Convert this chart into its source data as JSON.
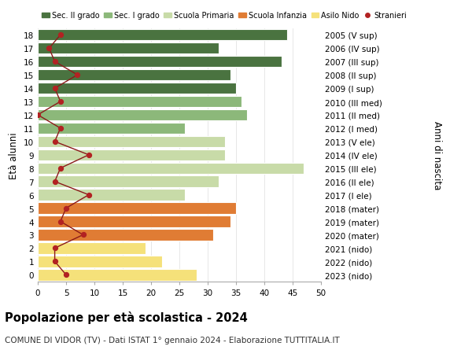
{
  "ages": [
    0,
    1,
    2,
    3,
    4,
    5,
    6,
    7,
    8,
    9,
    10,
    11,
    12,
    13,
    14,
    15,
    16,
    17,
    18
  ],
  "bar_values": [
    28,
    22,
    19,
    31,
    34,
    35,
    26,
    32,
    47,
    33,
    33,
    26,
    37,
    36,
    35,
    34,
    43,
    32,
    44
  ],
  "bar_colors": [
    "#f5e17a",
    "#f5e17a",
    "#f5e17a",
    "#e07c34",
    "#e07c34",
    "#e07c34",
    "#c8dba8",
    "#c8dba8",
    "#c8dba8",
    "#c8dba8",
    "#c8dba8",
    "#8cb87a",
    "#8cb87a",
    "#8cb87a",
    "#4a7340",
    "#4a7340",
    "#4a7340",
    "#4a7340",
    "#4a7340"
  ],
  "stranieri_values": [
    5,
    3,
    3,
    8,
    4,
    5,
    9,
    3,
    4,
    9,
    3,
    4,
    0,
    4,
    3,
    7,
    3,
    2,
    4
  ],
  "right_labels": [
    "2023 (nido)",
    "2022 (nido)",
    "2021 (nido)",
    "2020 (mater)",
    "2019 (mater)",
    "2018 (mater)",
    "2017 (I ele)",
    "2016 (II ele)",
    "2015 (III ele)",
    "2014 (IV ele)",
    "2013 (V ele)",
    "2012 (I med)",
    "2011 (II med)",
    "2010 (III med)",
    "2009 (I sup)",
    "2008 (II sup)",
    "2007 (III sup)",
    "2006 (IV sup)",
    "2005 (V sup)"
  ],
  "legend_labels": [
    "Sec. II grado",
    "Sec. I grado",
    "Scuola Primaria",
    "Scuola Infanzia",
    "Asilo Nido",
    "Stranieri"
  ],
  "legend_colors": [
    "#4a7340",
    "#8cb87a",
    "#c8dba8",
    "#e07c34",
    "#f5e17a",
    "#b22222"
  ],
  "ylabel_left": "Età alunni",
  "ylabel_right": "Anni di nascita",
  "title": "Popolazione per età scolastica - 2024",
  "subtitle": "COMUNE DI VIDOR (TV) - Dati ISTAT 1° gennaio 2024 - Elaborazione TUTTITALIA.IT",
  "xlim": [
    0,
    50
  ],
  "background_color": "#ffffff",
  "grid_color": "#dddddd"
}
